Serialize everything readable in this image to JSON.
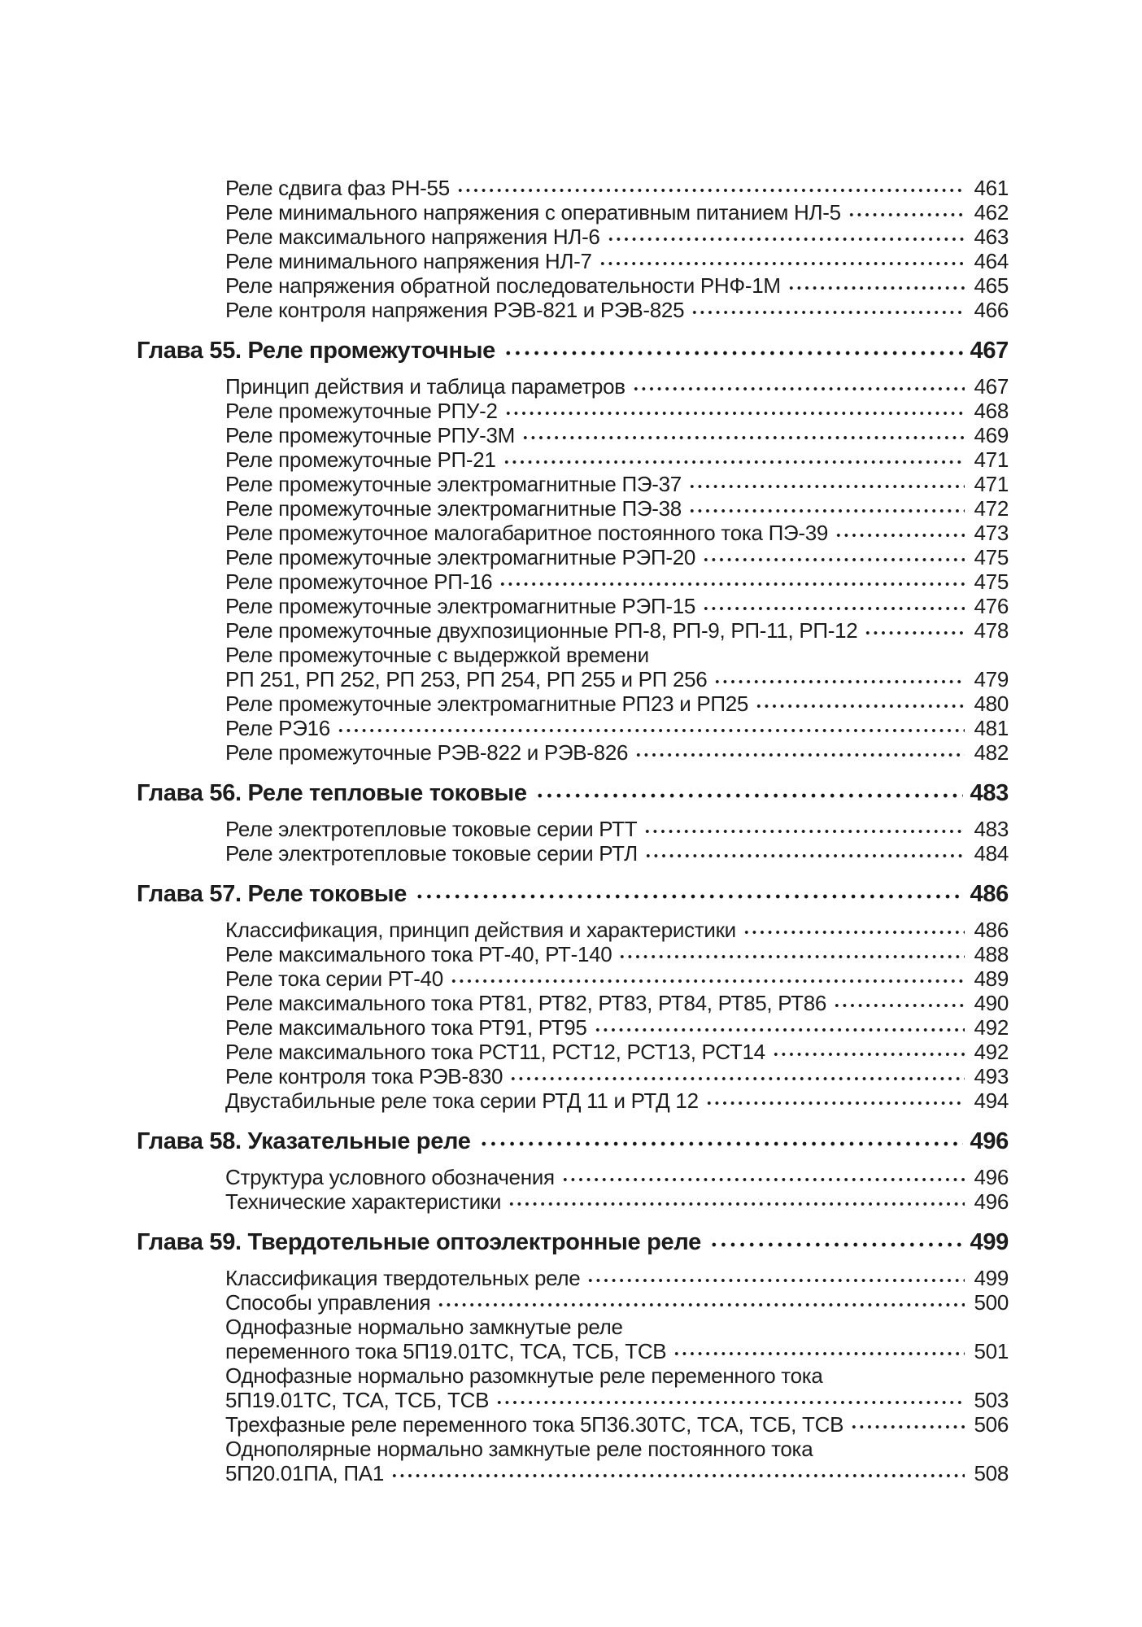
{
  "page": {
    "background_color": "#ffffff",
    "text_color": "#1c1c1c",
    "language": "ru",
    "kind": "book-table-of-contents"
  },
  "toc": {
    "sections": [
      {
        "chapter": null,
        "entries": [
          {
            "lines": [
              "Реле сдвига фаз РН-55"
            ],
            "page": "461"
          },
          {
            "lines": [
              "Реле минимального напряжения с оперативным питанием НЛ-5"
            ],
            "page": "462"
          },
          {
            "lines": [
              "Реле максимального напряжения НЛ-6"
            ],
            "page": "463"
          },
          {
            "lines": [
              "Реле минимального напряжения НЛ-7"
            ],
            "page": "464"
          },
          {
            "lines": [
              "Реле напряжения обратной последовательности РНФ-1М"
            ],
            "page": "465"
          },
          {
            "lines": [
              "Реле контроля напряжения РЭВ-821 и РЭВ-825"
            ],
            "page": "466"
          }
        ]
      },
      {
        "chapter": {
          "title": "Глава 55. Реле промежуточные",
          "page": "467"
        },
        "entries": [
          {
            "lines": [
              "Принцип действия и таблица параметров"
            ],
            "page": "467"
          },
          {
            "lines": [
              "Реле промежуточные РПУ-2"
            ],
            "page": "468"
          },
          {
            "lines": [
              "Реле промежуточные РПУ-3М"
            ],
            "page": "469"
          },
          {
            "lines": [
              "Реле промежуточные РП-21"
            ],
            "page": "471"
          },
          {
            "lines": [
              "Реле промежуточные электромагнитные ПЭ-37"
            ],
            "page": "471"
          },
          {
            "lines": [
              "Реле промежуточные электромагнитные ПЭ-38"
            ],
            "page": "472"
          },
          {
            "lines": [
              "Реле промежуточное малогабаритное постоянного тока ПЭ-39"
            ],
            "page": "473"
          },
          {
            "lines": [
              "Реле промежуточные электромагнитные РЭП-20"
            ],
            "page": "475"
          },
          {
            "lines": [
              "Реле промежуточное РП-16"
            ],
            "page": "475"
          },
          {
            "lines": [
              "Реле промежуточные электромагнитные РЭП-15"
            ],
            "page": "476"
          },
          {
            "lines": [
              "Реле промежуточные двухпозиционные РП-8, РП-9, РП-11, РП-12"
            ],
            "page": "478"
          },
          {
            "lines": [
              "Реле промежуточные с выдержкой времени",
              "РП 251, РП 252, РП 253, РП 254, РП 255 и РП 256"
            ],
            "page": "479"
          },
          {
            "lines": [
              "Реле промежуточные электромагнитные РП23 и РП25"
            ],
            "page": "480"
          },
          {
            "lines": [
              "Реле РЭ16"
            ],
            "page": "481"
          },
          {
            "lines": [
              "Реле промежуточные РЭВ-822 и РЭВ-826"
            ],
            "page": "482"
          }
        ]
      },
      {
        "chapter": {
          "title": "Глава 56. Реле тепловые токовые",
          "page": "483"
        },
        "entries": [
          {
            "lines": [
              "Реле электротепловые токовые серии РТТ"
            ],
            "page": "483"
          },
          {
            "lines": [
              "Реле электротепловые токовые серии РТЛ"
            ],
            "page": "484"
          }
        ]
      },
      {
        "chapter": {
          "title": "Глава 57. Реле токовые",
          "page": "486"
        },
        "entries": [
          {
            "lines": [
              "Классификация, принцип действия и характеристики"
            ],
            "page": "486"
          },
          {
            "lines": [
              "Реле максимального тока РТ-40, РТ-140"
            ],
            "page": "488"
          },
          {
            "lines": [
              "Реле тока серии РТ-40"
            ],
            "page": "489"
          },
          {
            "lines": [
              "Реле максимального тока РТ81, РТ82, РТ83, РТ84, РТ85, РТ86"
            ],
            "page": "490"
          },
          {
            "lines": [
              "Реле максимального тока РТ91, РТ95"
            ],
            "page": "492"
          },
          {
            "lines": [
              "Реле максимального тока РСТ11, РСТ12, РСТ13, РСТ14"
            ],
            "page": "492"
          },
          {
            "lines": [
              "Реле контроля тока РЭВ-830"
            ],
            "page": "493"
          },
          {
            "lines": [
              "Двустабильные реле тока серии РТД 11 и РТД 12"
            ],
            "page": "494"
          }
        ]
      },
      {
        "chapter": {
          "title": "Глава 58. Указательные реле",
          "page": "496"
        },
        "entries": [
          {
            "lines": [
              "Структура условного обозначения"
            ],
            "page": "496"
          },
          {
            "lines": [
              "Технические характеристики"
            ],
            "page": "496"
          }
        ]
      },
      {
        "chapter": {
          "title": "Глава 59. Твердотельные оптоэлектронные реле",
          "page": "499"
        },
        "entries": [
          {
            "lines": [
              "Классификация твердотельных реле"
            ],
            "page": "499"
          },
          {
            "lines": [
              "Способы управления"
            ],
            "page": "500"
          },
          {
            "lines": [
              "Однофазные нормально замкнутые реле",
              "переменного тока 5П19.01ТС, ТСА, ТСБ, ТСВ"
            ],
            "page": "501"
          },
          {
            "lines": [
              "Однофазные нормально разомкнутые реле переменного тока",
              "5П19.01ТС, ТСА, ТСБ, ТСВ"
            ],
            "page": "503"
          },
          {
            "lines": [
              "Трехфазные реле переменного тока 5П36.30ТС, ТСА, ТСБ, ТСВ"
            ],
            "page": "506"
          },
          {
            "lines": [
              "Однополярные нормально замкнутые реле постоянного тока",
              "5П20.01ПА, ПА1"
            ],
            "page": "508"
          }
        ]
      }
    ]
  }
}
